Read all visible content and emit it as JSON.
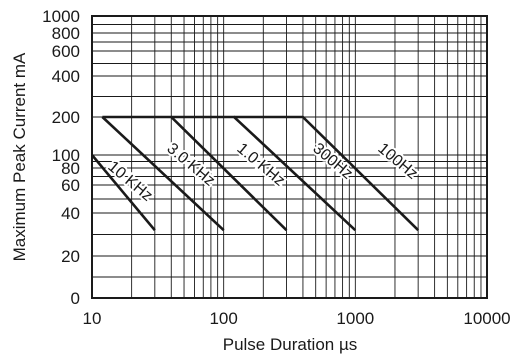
{
  "chart_data": {
    "type": "line",
    "x_scale": "log",
    "grid": true,
    "xlabel": "Pulse Duration µs",
    "ylabel": "Maximum Peak Current mA",
    "xlim": [
      10,
      10000
    ],
    "ylim": [
      0,
      1000
    ],
    "x_ticks": [
      "10",
      "100",
      "1000",
      "10000"
    ],
    "y_ticks": [
      {
        "value": 0,
        "label": "0"
      },
      {
        "value": 20,
        "label": "20"
      },
      {
        "value": 40,
        "label": "40"
      },
      {
        "value": 60,
        "label": "60"
      },
      {
        "value": 80,
        "label": "80"
      },
      {
        "value": 100,
        "label": "100"
      },
      {
        "value": 200,
        "label": "200"
      },
      {
        "value": 400,
        "label": "400"
      },
      {
        "value": 600,
        "label": "600"
      },
      {
        "value": 800,
        "label": "800"
      },
      {
        "value": 1000,
        "label": "1000"
      }
    ],
    "series": [
      {
        "name": "10 KHz",
        "points": [
          [
            10,
            100
          ],
          [
            30,
            32
          ]
        ]
      },
      {
        "name": "3.0 KHz",
        "points": [
          [
            12,
            200
          ],
          [
            100,
            32
          ]
        ]
      },
      {
        "name": "1.0 KHz",
        "points": [
          [
            12,
            200
          ],
          [
            40,
            200
          ],
          [
            300,
            32
          ]
        ]
      },
      {
        "name": "300Hz",
        "points": [
          [
            40,
            200
          ],
          [
            120,
            200
          ],
          [
            1000,
            32
          ]
        ]
      },
      {
        "name": "100Hz",
        "points": [
          [
            120,
            200
          ],
          [
            400,
            200
          ],
          [
            3000,
            32
          ]
        ]
      }
    ]
  }
}
